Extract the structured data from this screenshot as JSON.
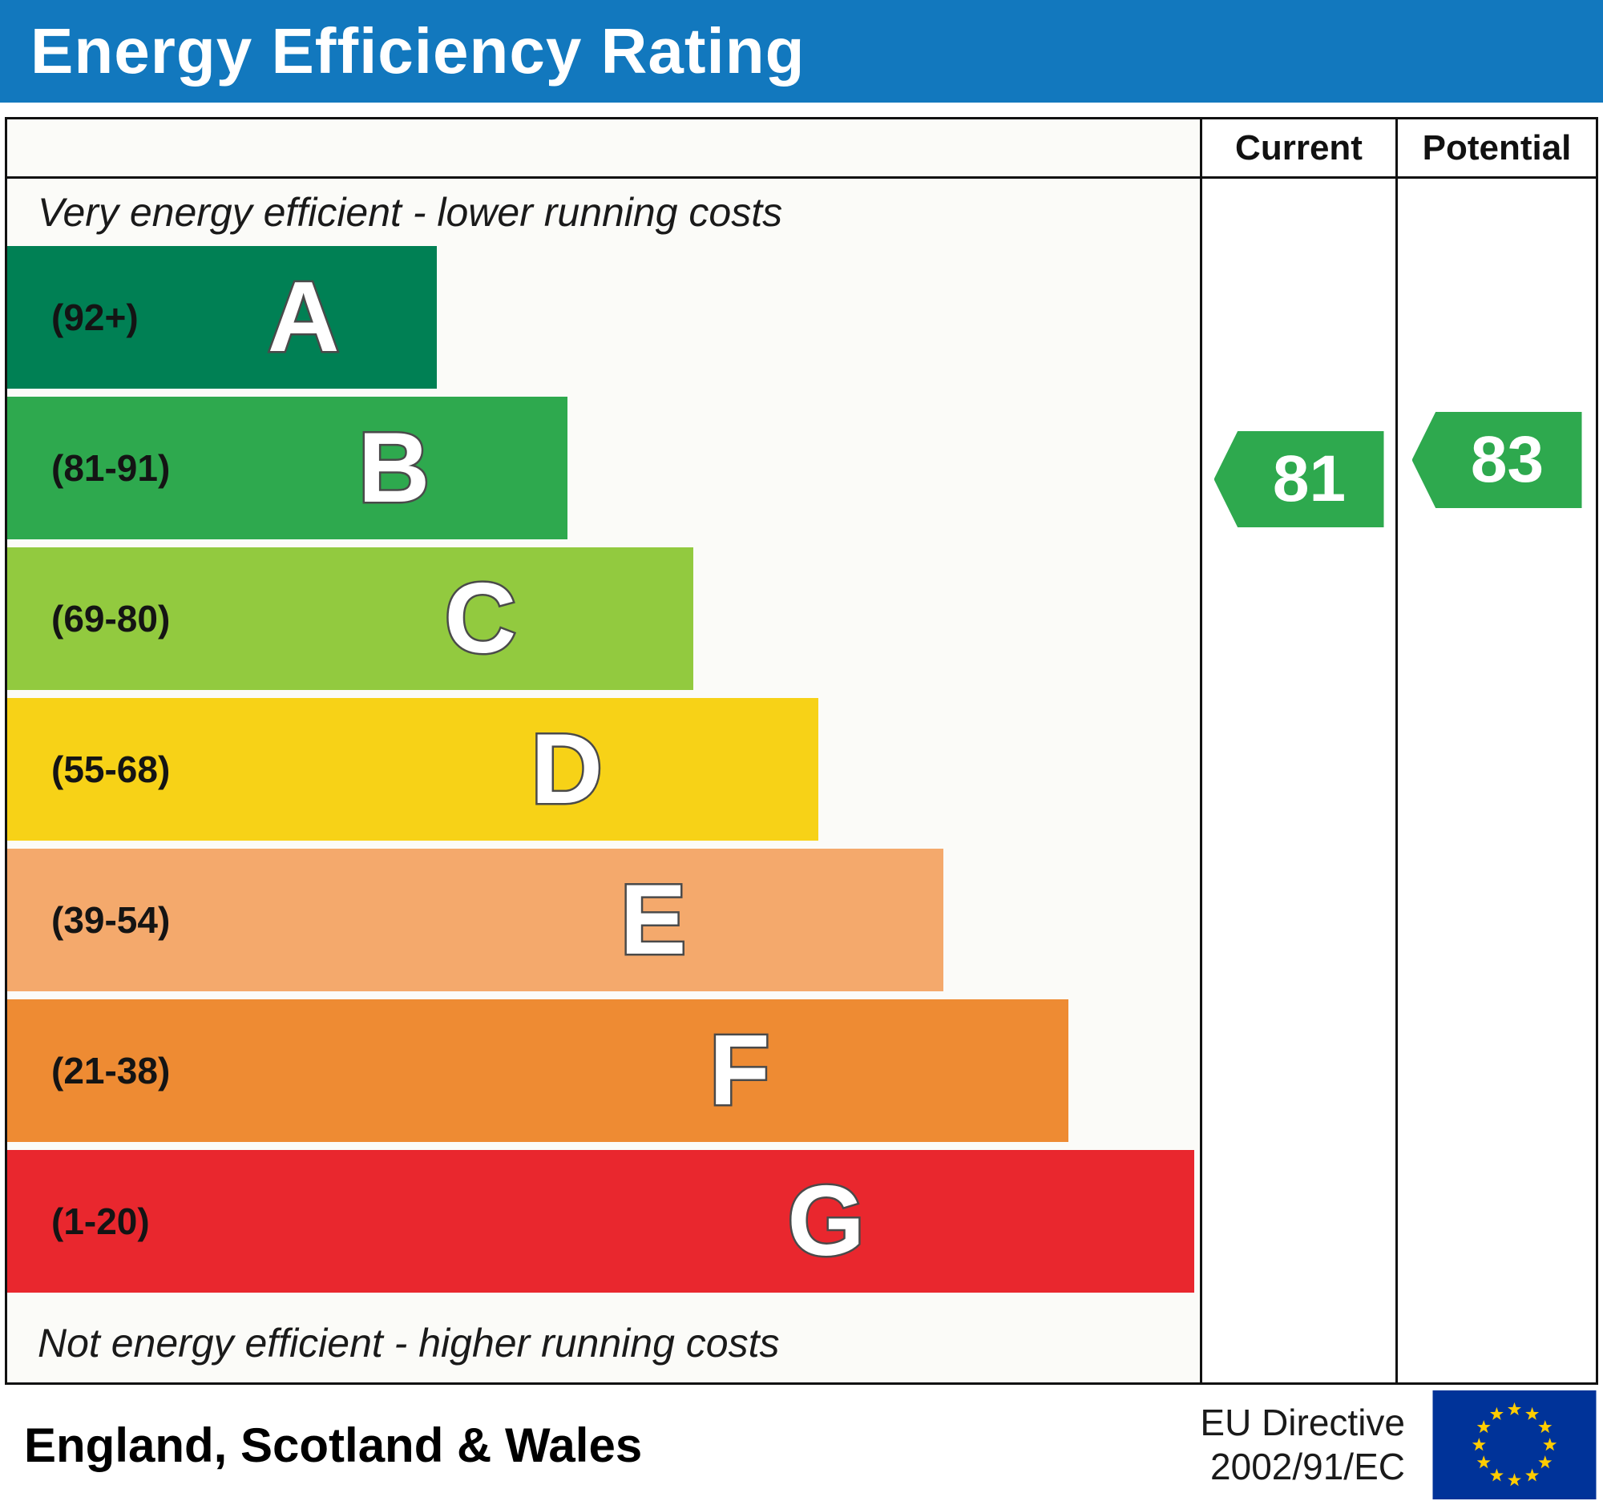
{
  "title": "Energy Efficiency Rating",
  "chart_data": {
    "type": "bar",
    "title": "Energy Efficiency Rating",
    "top_note": "Very energy efficient - lower running costs",
    "bottom_note": "Not energy efficient - higher running costs",
    "bands": [
      {
        "letter": "A",
        "range": "(92+)",
        "color": "#008054",
        "width_pct": 36
      },
      {
        "letter": "B",
        "range": "(81-91)",
        "color": "#2ea94e",
        "width_pct": 47
      },
      {
        "letter": "C",
        "range": "(69-80)",
        "color": "#92ca3f",
        "width_pct": 57.5
      },
      {
        "letter": "D",
        "range": "(55-68)",
        "color": "#f7d217",
        "width_pct": 68
      },
      {
        "letter": "E",
        "range": "(39-54)",
        "color": "#f4a96c",
        "width_pct": 78.5
      },
      {
        "letter": "F",
        "range": "(21-38)",
        "color": "#ee8b33",
        "width_pct": 89
      },
      {
        "letter": "G",
        "range": "(1-20)",
        "color": "#e9272e",
        "width_pct": 99.5
      }
    ],
    "current": {
      "label": "Current",
      "value": 81,
      "band": "B",
      "band_index": 1,
      "color": "#2ea94e"
    },
    "potential": {
      "label": "Potential",
      "value": 83,
      "band": "B",
      "band_index": 1,
      "color": "#2ea94e"
    }
  },
  "footer": {
    "region": "England, Scotland & Wales",
    "directive_line1": "EU Directive",
    "directive_line2": "2002/91/EC"
  },
  "eu_flag": {
    "background": "#003399",
    "stars": "#ffcc00"
  },
  "colors": {
    "title_bar": "#1278be",
    "border": "#111111"
  }
}
